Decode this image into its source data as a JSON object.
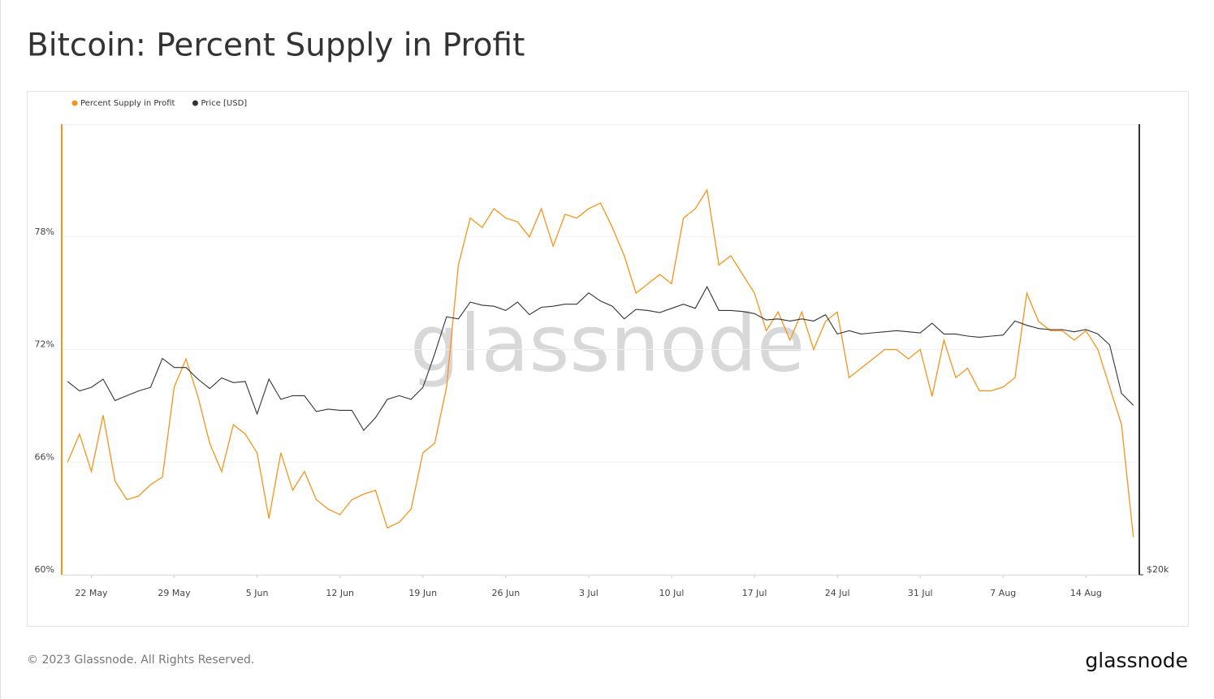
{
  "chart_data": {
    "type": "line",
    "title": "Bitcoin: Percent Supply in Profit",
    "watermark": "glassnode",
    "categories": [
      null,
      null,
      "22 May",
      null,
      null,
      null,
      null,
      null,
      null,
      "29 May",
      null,
      null,
      null,
      null,
      null,
      null,
      "5 Jun",
      null,
      null,
      null,
      null,
      null,
      null,
      "12 Jun",
      null,
      null,
      null,
      null,
      null,
      null,
      "19 Jun",
      null,
      null,
      null,
      null,
      null,
      null,
      "26 Jun",
      null,
      null,
      null,
      null,
      null,
      null,
      "3 Jul",
      null,
      null,
      null,
      null,
      null,
      null,
      "10 Jul",
      null,
      null,
      null,
      null,
      null,
      null,
      "17 Jul",
      null,
      null,
      null,
      null,
      null,
      null,
      "24 Jul",
      null,
      null,
      null,
      null,
      null,
      null,
      "31 Jul",
      null,
      null,
      null,
      null,
      null,
      null,
      "7 Aug",
      null,
      null,
      null,
      null,
      null,
      null,
      "14 Aug",
      null,
      null,
      null,
      null
    ],
    "series": [
      {
        "name": "Percent Supply in Profit",
        "color": "#f7931a",
        "axis": "y",
        "values": [
          66,
          67.5,
          65.5,
          68.5,
          65,
          64,
          64.2,
          64.8,
          65.2,
          70,
          71.5,
          69.5,
          67,
          65.5,
          68,
          67.5,
          66.5,
          63,
          66.5,
          64.5,
          65.5,
          64,
          63.5,
          63.2,
          64,
          64.3,
          64.5,
          62.5,
          62.8,
          63.5,
          66.5,
          67,
          70,
          76.5,
          79,
          78.5,
          79.5,
          79,
          78.8,
          78,
          79.5,
          77.5,
          79.2,
          79,
          79.5,
          79.8,
          78.5,
          77,
          75,
          75.5,
          76,
          75.5,
          79,
          79.5,
          80.5,
          76.5,
          77,
          76,
          75,
          73,
          74,
          72.5,
          74,
          72,
          73.5,
          74,
          70.5,
          71,
          71.5,
          72,
          72,
          71.5,
          72,
          69.5,
          72.5,
          70.5,
          71,
          69.8,
          69.8,
          70,
          70.5,
          75,
          73.5,
          73,
          73,
          72.5,
          73,
          72,
          70,
          68,
          62
        ]
      },
      {
        "name": "Price [USD]",
        "color": "#333333",
        "axis": "y2",
        "values": [
          27100,
          26700,
          26850,
          27200,
          26300,
          26500,
          26700,
          26850,
          28100,
          27700,
          27700,
          27200,
          26800,
          27250,
          27050,
          27100,
          25750,
          27200,
          26350,
          26500,
          26500,
          25850,
          25950,
          25900,
          25900,
          25100,
          25600,
          26350,
          26500,
          26350,
          26850,
          28300,
          30000,
          29900,
          30700,
          30550,
          30500,
          30300,
          30700,
          30100,
          30450,
          30500,
          30600,
          30600,
          31150,
          30750,
          30500,
          29900,
          30350,
          30300,
          30200,
          30400,
          30600,
          30400,
          31450,
          30300,
          30300,
          30250,
          30150,
          29850,
          29900,
          29800,
          29900,
          29800,
          30100,
          29200,
          29350,
          29200,
          29250,
          29300,
          29350,
          29300,
          29250,
          29700,
          29200,
          29200,
          29100,
          29050,
          29100,
          29150,
          29800,
          29600,
          29450,
          29400,
          29400,
          29300,
          29400,
          29200,
          28700,
          26600,
          26100
        ]
      }
    ],
    "ylim": [
      60,
      84
    ],
    "yticks": [
      {
        "value": 60,
        "label": "60%"
      },
      {
        "value": 66,
        "label": "66%"
      },
      {
        "value": 72,
        "label": "72%"
      },
      {
        "value": 78,
        "label": "78%"
      }
    ],
    "y2lim": [
      20000,
      40600
    ],
    "y2ticks": [
      {
        "value": 20000,
        "label": "$20k"
      }
    ],
    "y2_scale": "log",
    "grid": true,
    "legend": "top-left"
  },
  "footer": {
    "copyright": "© 2023 Glassnode. All Rights Reserved.",
    "logo": "glassnode"
  }
}
